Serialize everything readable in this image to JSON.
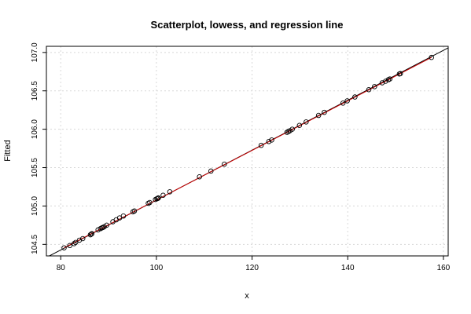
{
  "chart_data": {
    "type": "scatter",
    "title": "Scatterplot, lowess, and regression line",
    "xlabel": "x",
    "ylabel": "Fitted",
    "xlim": [
      77,
      161
    ],
    "ylim": [
      104.35,
      107.08
    ],
    "x_ticks": [
      "80",
      "100",
      "120",
      "140",
      "160"
    ],
    "y_ticks": [
      "104.5",
      "105.0",
      "105.5",
      "106.0",
      "106.5",
      "107.0"
    ],
    "grid": true,
    "series": [
      {
        "kind": "points",
        "x": [
          80.7,
          81.9,
          82.8,
          83.1,
          83.9,
          84.6,
          86.2,
          86.4,
          86.5,
          87.8,
          88.3,
          88.6,
          88.8,
          89.1,
          89.6,
          90.9,
          91.6,
          92.3,
          93.1,
          95.1,
          95.4,
          98.3,
          98.6,
          99.8,
          100.1,
          100.3,
          100.4,
          101.4,
          102.8,
          109.0,
          111.4,
          114.2,
          121.9,
          123.5,
          124.1,
          127.3,
          127.6,
          127.9,
          128.4,
          129.9,
          131.3,
          133.9,
          135.1,
          139.0,
          139.9,
          141.5,
          144.4,
          145.6,
          147.2,
          147.9,
          148.5,
          148.8,
          150.8,
          151.0,
          157.5
        ],
        "y": [
          104.455,
          104.485,
          104.51,
          104.525,
          104.555,
          104.575,
          104.625,
          104.635,
          104.64,
          104.69,
          104.705,
          104.715,
          104.72,
          104.73,
          104.75,
          104.795,
          104.82,
          104.845,
          104.87,
          104.925,
          104.935,
          105.035,
          105.045,
          105.085,
          105.095,
          105.1,
          105.105,
          105.14,
          105.185,
          105.38,
          105.455,
          105.545,
          105.79,
          105.84,
          105.86,
          105.96,
          105.97,
          105.98,
          106.0,
          106.05,
          106.095,
          106.18,
          106.22,
          106.34,
          106.37,
          106.42,
          106.515,
          106.555,
          106.605,
          106.625,
          106.645,
          106.655,
          106.72,
          106.725,
          106.935
        ]
      },
      {
        "kind": "regression-line",
        "color": "#000000",
        "x": [
          77,
          161
        ],
        "y": [
          104.33,
          107.06
        ]
      },
      {
        "kind": "lowess-line",
        "color": "#cc0000",
        "x": [
          80.7,
          157.5
        ],
        "y": [
          104.455,
          106.935
        ]
      }
    ]
  }
}
